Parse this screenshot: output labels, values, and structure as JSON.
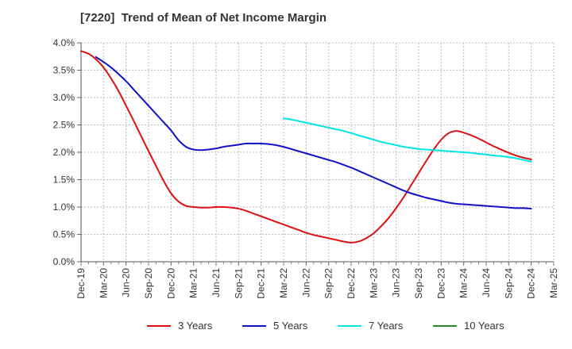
{
  "chart_data": {
    "type": "line",
    "title": "[7220]  Trend of Mean of Net Income Margin",
    "xlabel": "",
    "ylabel": "",
    "ylim": [
      0,
      4.0
    ],
    "y_ticks": [
      0,
      0.5,
      1.0,
      1.5,
      2.0,
      2.5,
      3.0,
      3.5,
      4.0
    ],
    "y_tick_labels": [
      "0.0%",
      "0.5%",
      "1.0%",
      "1.5%",
      "2.0%",
      "2.5%",
      "3.0%",
      "3.5%",
      "4.0%"
    ],
    "x_tick_labels": [
      "Dec-19",
      "Mar-20",
      "Jun-20",
      "Sep-20",
      "Dec-20",
      "Mar-21",
      "Jun-21",
      "Sep-21",
      "Dec-21",
      "Mar-22",
      "Jun-22",
      "Sep-22",
      "Dec-22",
      "Mar-23",
      "Jun-23",
      "Sep-23",
      "Dec-23",
      "Mar-24",
      "Jun-24",
      "Sep-24",
      "Dec-24",
      "Mar-25"
    ],
    "grid": true,
    "legend_position": "bottom",
    "series": [
      {
        "name": "3 Years",
        "color": "#dd1111",
        "points": [
          [
            "Dec-19",
            3.85
          ],
          [
            "Jan-20",
            3.8
          ],
          [
            "Feb-20",
            3.7
          ],
          [
            "Mar-20",
            3.55
          ],
          [
            "Apr-20",
            3.35
          ],
          [
            "May-20",
            3.12
          ],
          [
            "Jun-20",
            2.85
          ],
          [
            "Jul-20",
            2.58
          ],
          [
            "Aug-20",
            2.3
          ],
          [
            "Sep-20",
            2.02
          ],
          [
            "Oct-20",
            1.75
          ],
          [
            "Nov-20",
            1.48
          ],
          [
            "Dec-20",
            1.25
          ],
          [
            "Jan-21",
            1.1
          ],
          [
            "Feb-21",
            1.02
          ],
          [
            "Mar-21",
            1.0
          ],
          [
            "Apr-21",
            0.99
          ],
          [
            "May-21",
            0.99
          ],
          [
            "Jun-21",
            1.0
          ],
          [
            "Jul-21",
            1.0
          ],
          [
            "Aug-21",
            0.99
          ],
          [
            "Sep-21",
            0.97
          ],
          [
            "Oct-21",
            0.93
          ],
          [
            "Nov-21",
            0.88
          ],
          [
            "Dec-21",
            0.83
          ],
          [
            "Jan-22",
            0.78
          ],
          [
            "Feb-22",
            0.73
          ],
          [
            "Mar-22",
            0.68
          ],
          [
            "Apr-22",
            0.63
          ],
          [
            "May-22",
            0.58
          ],
          [
            "Jun-22",
            0.53
          ],
          [
            "Jul-22",
            0.49
          ],
          [
            "Aug-22",
            0.46
          ],
          [
            "Sep-22",
            0.43
          ],
          [
            "Oct-22",
            0.4
          ],
          [
            "Nov-22",
            0.37
          ],
          [
            "Dec-22",
            0.35
          ],
          [
            "Jan-23",
            0.37
          ],
          [
            "Feb-23",
            0.43
          ],
          [
            "Mar-23",
            0.52
          ],
          [
            "Apr-23",
            0.65
          ],
          [
            "May-23",
            0.8
          ],
          [
            "Jun-23",
            0.98
          ],
          [
            "Jul-23",
            1.18
          ],
          [
            "Aug-23",
            1.4
          ],
          [
            "Sep-23",
            1.62
          ],
          [
            "Oct-23",
            1.84
          ],
          [
            "Nov-23",
            2.05
          ],
          [
            "Dec-23",
            2.23
          ],
          [
            "Jan-24",
            2.35
          ],
          [
            "Feb-24",
            2.39
          ],
          [
            "Mar-24",
            2.36
          ],
          [
            "Apr-24",
            2.31
          ],
          [
            "May-24",
            2.25
          ],
          [
            "Jun-24",
            2.18
          ],
          [
            "Jul-24",
            2.11
          ],
          [
            "Aug-24",
            2.05
          ],
          [
            "Sep-24",
            1.99
          ],
          [
            "Oct-24",
            1.94
          ],
          [
            "Nov-24",
            1.9
          ],
          [
            "Dec-24",
            1.87
          ]
        ]
      },
      {
        "name": "5 Years",
        "color": "#1111cc",
        "points": [
          [
            "Feb-20",
            3.74
          ],
          [
            "Mar-20",
            3.65
          ],
          [
            "Apr-20",
            3.55
          ],
          [
            "May-20",
            3.43
          ],
          [
            "Jun-20",
            3.3
          ],
          [
            "Jul-20",
            3.15
          ],
          [
            "Aug-20",
            3.0
          ],
          [
            "Sep-20",
            2.85
          ],
          [
            "Oct-20",
            2.7
          ],
          [
            "Nov-20",
            2.55
          ],
          [
            "Dec-20",
            2.4
          ],
          [
            "Jan-21",
            2.22
          ],
          [
            "Feb-21",
            2.1
          ],
          [
            "Mar-21",
            2.05
          ],
          [
            "Apr-21",
            2.04
          ],
          [
            "May-21",
            2.05
          ],
          [
            "Jun-21",
            2.07
          ],
          [
            "Jul-21",
            2.1
          ],
          [
            "Aug-21",
            2.12
          ],
          [
            "Sep-21",
            2.14
          ],
          [
            "Oct-21",
            2.16
          ],
          [
            "Nov-21",
            2.16
          ],
          [
            "Dec-21",
            2.16
          ],
          [
            "Jan-22",
            2.15
          ],
          [
            "Feb-22",
            2.13
          ],
          [
            "Mar-22",
            2.1
          ],
          [
            "Apr-22",
            2.06
          ],
          [
            "May-22",
            2.02
          ],
          [
            "Jun-22",
            1.98
          ],
          [
            "Jul-22",
            1.94
          ],
          [
            "Aug-22",
            1.9
          ],
          [
            "Sep-22",
            1.86
          ],
          [
            "Oct-22",
            1.82
          ],
          [
            "Nov-22",
            1.77
          ],
          [
            "Dec-22",
            1.72
          ],
          [
            "Jan-23",
            1.66
          ],
          [
            "Feb-23",
            1.6
          ],
          [
            "Mar-23",
            1.54
          ],
          [
            "Apr-23",
            1.48
          ],
          [
            "May-23",
            1.42
          ],
          [
            "Jun-23",
            1.36
          ],
          [
            "Jul-23",
            1.3
          ],
          [
            "Aug-23",
            1.25
          ],
          [
            "Sep-23",
            1.21
          ],
          [
            "Oct-23",
            1.17
          ],
          [
            "Nov-23",
            1.14
          ],
          [
            "Dec-23",
            1.11
          ],
          [
            "Jan-24",
            1.08
          ],
          [
            "Feb-24",
            1.06
          ],
          [
            "Mar-24",
            1.05
          ],
          [
            "Apr-24",
            1.04
          ],
          [
            "May-24",
            1.03
          ],
          [
            "Jun-24",
            1.02
          ],
          [
            "Jul-24",
            1.01
          ],
          [
            "Aug-24",
            1.0
          ],
          [
            "Sep-24",
            0.99
          ],
          [
            "Oct-24",
            0.98
          ],
          [
            "Nov-24",
            0.98
          ],
          [
            "Dec-24",
            0.97
          ]
        ]
      },
      {
        "name": "7 Years",
        "color": "#00e5e5",
        "points": [
          [
            "Mar-22",
            2.62
          ],
          [
            "Apr-22",
            2.6
          ],
          [
            "May-22",
            2.57
          ],
          [
            "Jun-22",
            2.54
          ],
          [
            "Jul-22",
            2.51
          ],
          [
            "Aug-22",
            2.48
          ],
          [
            "Sep-22",
            2.45
          ],
          [
            "Oct-22",
            2.42
          ],
          [
            "Nov-22",
            2.39
          ],
          [
            "Dec-22",
            2.35
          ],
          [
            "Jan-23",
            2.31
          ],
          [
            "Feb-23",
            2.27
          ],
          [
            "Mar-23",
            2.23
          ],
          [
            "Apr-23",
            2.19
          ],
          [
            "May-23",
            2.16
          ],
          [
            "Jun-23",
            2.13
          ],
          [
            "Jul-23",
            2.1
          ],
          [
            "Aug-23",
            2.08
          ],
          [
            "Sep-23",
            2.06
          ],
          [
            "Oct-23",
            2.05
          ],
          [
            "Nov-23",
            2.04
          ],
          [
            "Dec-23",
            2.03
          ],
          [
            "Jan-24",
            2.02
          ],
          [
            "Feb-24",
            2.01
          ],
          [
            "Mar-24",
            2.0
          ],
          [
            "Apr-24",
            1.99
          ],
          [
            "May-24",
            1.97
          ],
          [
            "Jun-24",
            1.96
          ],
          [
            "Jul-24",
            1.94
          ],
          [
            "Aug-24",
            1.93
          ],
          [
            "Sep-24",
            1.91
          ],
          [
            "Oct-24",
            1.89
          ],
          [
            "Nov-24",
            1.86
          ],
          [
            "Dec-24",
            1.83
          ]
        ]
      },
      {
        "name": "10 Years",
        "color": "#228822",
        "points": []
      }
    ]
  }
}
